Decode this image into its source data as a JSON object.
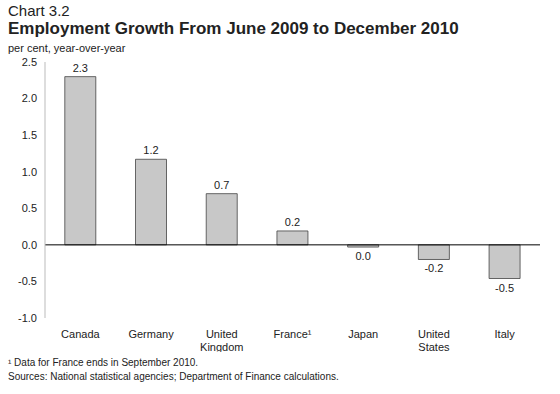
{
  "chart_data": {
    "type": "bar",
    "chart_number": "Chart 3.2",
    "title": "Employment Growth From June 2009 to December 2010",
    "subtitle": "per cent, year-over-year",
    "categories": [
      "Canada",
      "Germany",
      "United Kingdom",
      "France¹",
      "Japan",
      "United States",
      "Italy"
    ],
    "values": [
      2.3,
      1.17,
      0.7,
      0.19,
      -0.03,
      -0.2,
      -0.46
    ],
    "value_labels": [
      "2.3",
      "1.2",
      "0.7",
      "0.2",
      "0.0",
      "-0.2",
      "-0.5"
    ],
    "color": "#c8c8c8",
    "ylim": [
      -1,
      2.5
    ],
    "yticks": [
      {
        "value": -1,
        "label": "-1.0"
      },
      -0.5,
      {
        "value": 0,
        "label": "0.0"
      },
      0.5,
      {
        "value": 1,
        "label": "1.0"
      },
      1.5,
      {
        "value": 2,
        "label": "2.0"
      },
      2.5
    ],
    "grid": false,
    "data_labels": true,
    "notes": [
      "¹ Data for France ends in September 2010.",
      "Sources: National statistical agencies; Department of Finance calculations."
    ]
  }
}
